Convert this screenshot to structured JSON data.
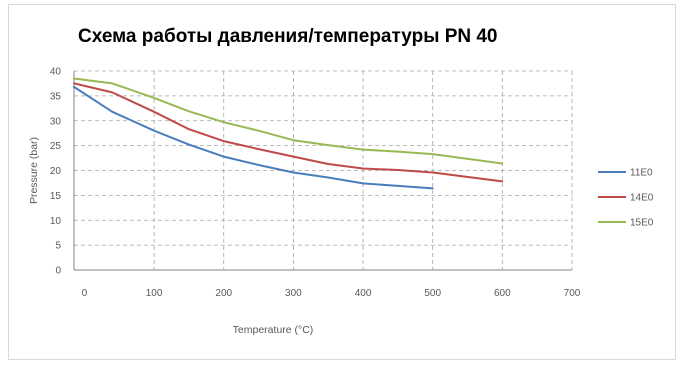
{
  "chart_data": {
    "type": "line",
    "title": "Схема работы давления/температуры PN 40",
    "xlabel": "Temperature (°C)",
    "ylabel": "Pressure (bar)",
    "xlim": [
      -15,
      700
    ],
    "ylim": [
      0,
      40
    ],
    "x_ticks": [
      0,
      100,
      200,
      300,
      400,
      500,
      600,
      700
    ],
    "y_ticks": [
      0,
      5,
      10,
      15,
      20,
      25,
      30,
      35,
      40
    ],
    "grid": true,
    "legend_position": "right",
    "series": [
      {
        "name": "11E0",
        "color": "#4a7ebb",
        "x": [
          -15,
          40,
          100,
          150,
          200,
          250,
          300,
          350,
          400,
          450,
          500
        ],
        "y": [
          36.8,
          31.8,
          28.0,
          25.2,
          22.8,
          21.1,
          19.6,
          18.6,
          17.4,
          16.9,
          16.4
        ]
      },
      {
        "name": "14E0",
        "color": "#be4b48",
        "x": [
          -15,
          40,
          100,
          150,
          200,
          250,
          300,
          350,
          400,
          450,
          500,
          600
        ],
        "y": [
          37.5,
          35.7,
          31.8,
          28.3,
          25.9,
          24.3,
          22.8,
          21.3,
          20.4,
          20.1,
          19.6,
          17.8
        ]
      },
      {
        "name": "15E0",
        "color": "#98b954",
        "x": [
          -15,
          40,
          100,
          150,
          200,
          250,
          300,
          350,
          400,
          450,
          500,
          600
        ],
        "y": [
          38.5,
          37.5,
          34.6,
          31.9,
          29.7,
          28.0,
          26.1,
          25.1,
          24.2,
          23.8,
          23.3,
          21.4
        ]
      }
    ]
  }
}
